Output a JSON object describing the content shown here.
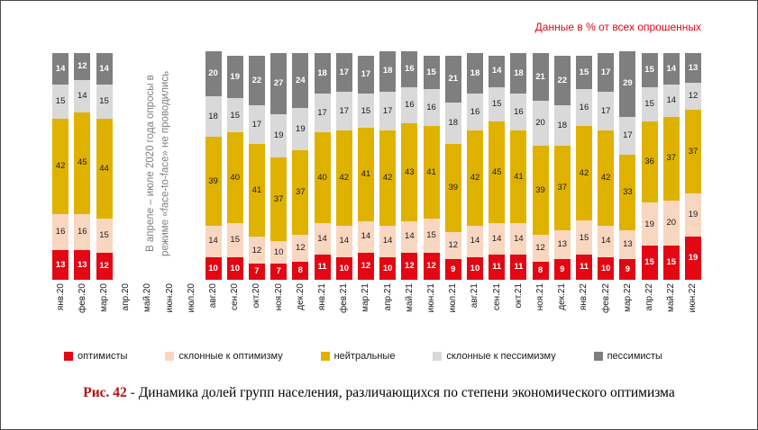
{
  "header": {
    "unit_note": "Данные в % от всех опрошенных"
  },
  "chart_data": {
    "type": "bar",
    "stacked": true,
    "ylim": [
      0,
      100
    ],
    "grid": false,
    "legend_position": "bottom",
    "bar_value_labels": true,
    "categories": [
      "янв.20",
      "фев.20",
      "мар.20",
      "апр.20",
      "май.20",
      "июн.20",
      "июл.20",
      "авг.20",
      "сен.20",
      "окт.20",
      "ноя.20",
      "дек.20",
      "янв.21",
      "фев.21",
      "мар.21",
      "апр.21",
      "май.21",
      "июн.21",
      "июл.21",
      "авг.21",
      "сен.21",
      "окт.21",
      "ноя.21",
      "дек.21",
      "янв.22",
      "фев.22",
      "мар.22",
      "апр.22",
      "май.22",
      "июн.22"
    ],
    "series": [
      {
        "name": "оптимисты",
        "color": "#e30613",
        "label_color": "#ffffff",
        "values": [
          13,
          13,
          12,
          null,
          null,
          null,
          null,
          10,
          10,
          7,
          7,
          8,
          11,
          10,
          12,
          10,
          12,
          12,
          9,
          10,
          11,
          11,
          8,
          9,
          11,
          10,
          9,
          15,
          15,
          19
        ]
      },
      {
        "name": "склонные к оптимизму",
        "color": "#f9d6c0",
        "label_color": "#1a1a1a",
        "values": [
          16,
          16,
          15,
          null,
          null,
          null,
          null,
          14,
          15,
          12,
          10,
          12,
          14,
          14,
          14,
          14,
          14,
          15,
          12,
          14,
          14,
          14,
          12,
          13,
          15,
          14,
          13,
          19,
          20,
          19
        ]
      },
      {
        "name": "нейтральные",
        "color": "#e0b200",
        "label_color": "#1a1a1a",
        "values": [
          42,
          45,
          44,
          null,
          null,
          null,
          null,
          39,
          40,
          41,
          37,
          37,
          40,
          42,
          41,
          42,
          43,
          41,
          39,
          42,
          45,
          41,
          39,
          37,
          42,
          42,
          33,
          36,
          37,
          37
        ]
      },
      {
        "name": "склонные к пессимизму",
        "color": "#d9d9d9",
        "label_color": "#1a1a1a",
        "values": [
          15,
          14,
          15,
          null,
          null,
          null,
          null,
          18,
          15,
          17,
          19,
          19,
          17,
          17,
          15,
          17,
          16,
          16,
          18,
          16,
          15,
          16,
          20,
          18,
          16,
          17,
          17,
          15,
          14,
          12
        ]
      },
      {
        "name": "пессимисты",
        "color": "#7f7f7f",
        "label_color": "#ffffff",
        "values": [
          14,
          12,
          14,
          null,
          null,
          null,
          null,
          20,
          19,
          22,
          27,
          24,
          18,
          17,
          17,
          18,
          16,
          15,
          21,
          18,
          14,
          18,
          21,
          22,
          15,
          17,
          29,
          15,
          14,
          13
        ]
      }
    ],
    "gap_note": "В апреле – июле 2020 года опросы в режиме «face-to-face» не проводились",
    "gap_columns": [
      "апр.20",
      "май.20",
      "июн.20",
      "июл.20"
    ]
  },
  "caption": {
    "prefix": "Рис. 42 -",
    "text": "Динамика долей групп населения, различающихся по степени экономического оптимизма"
  }
}
